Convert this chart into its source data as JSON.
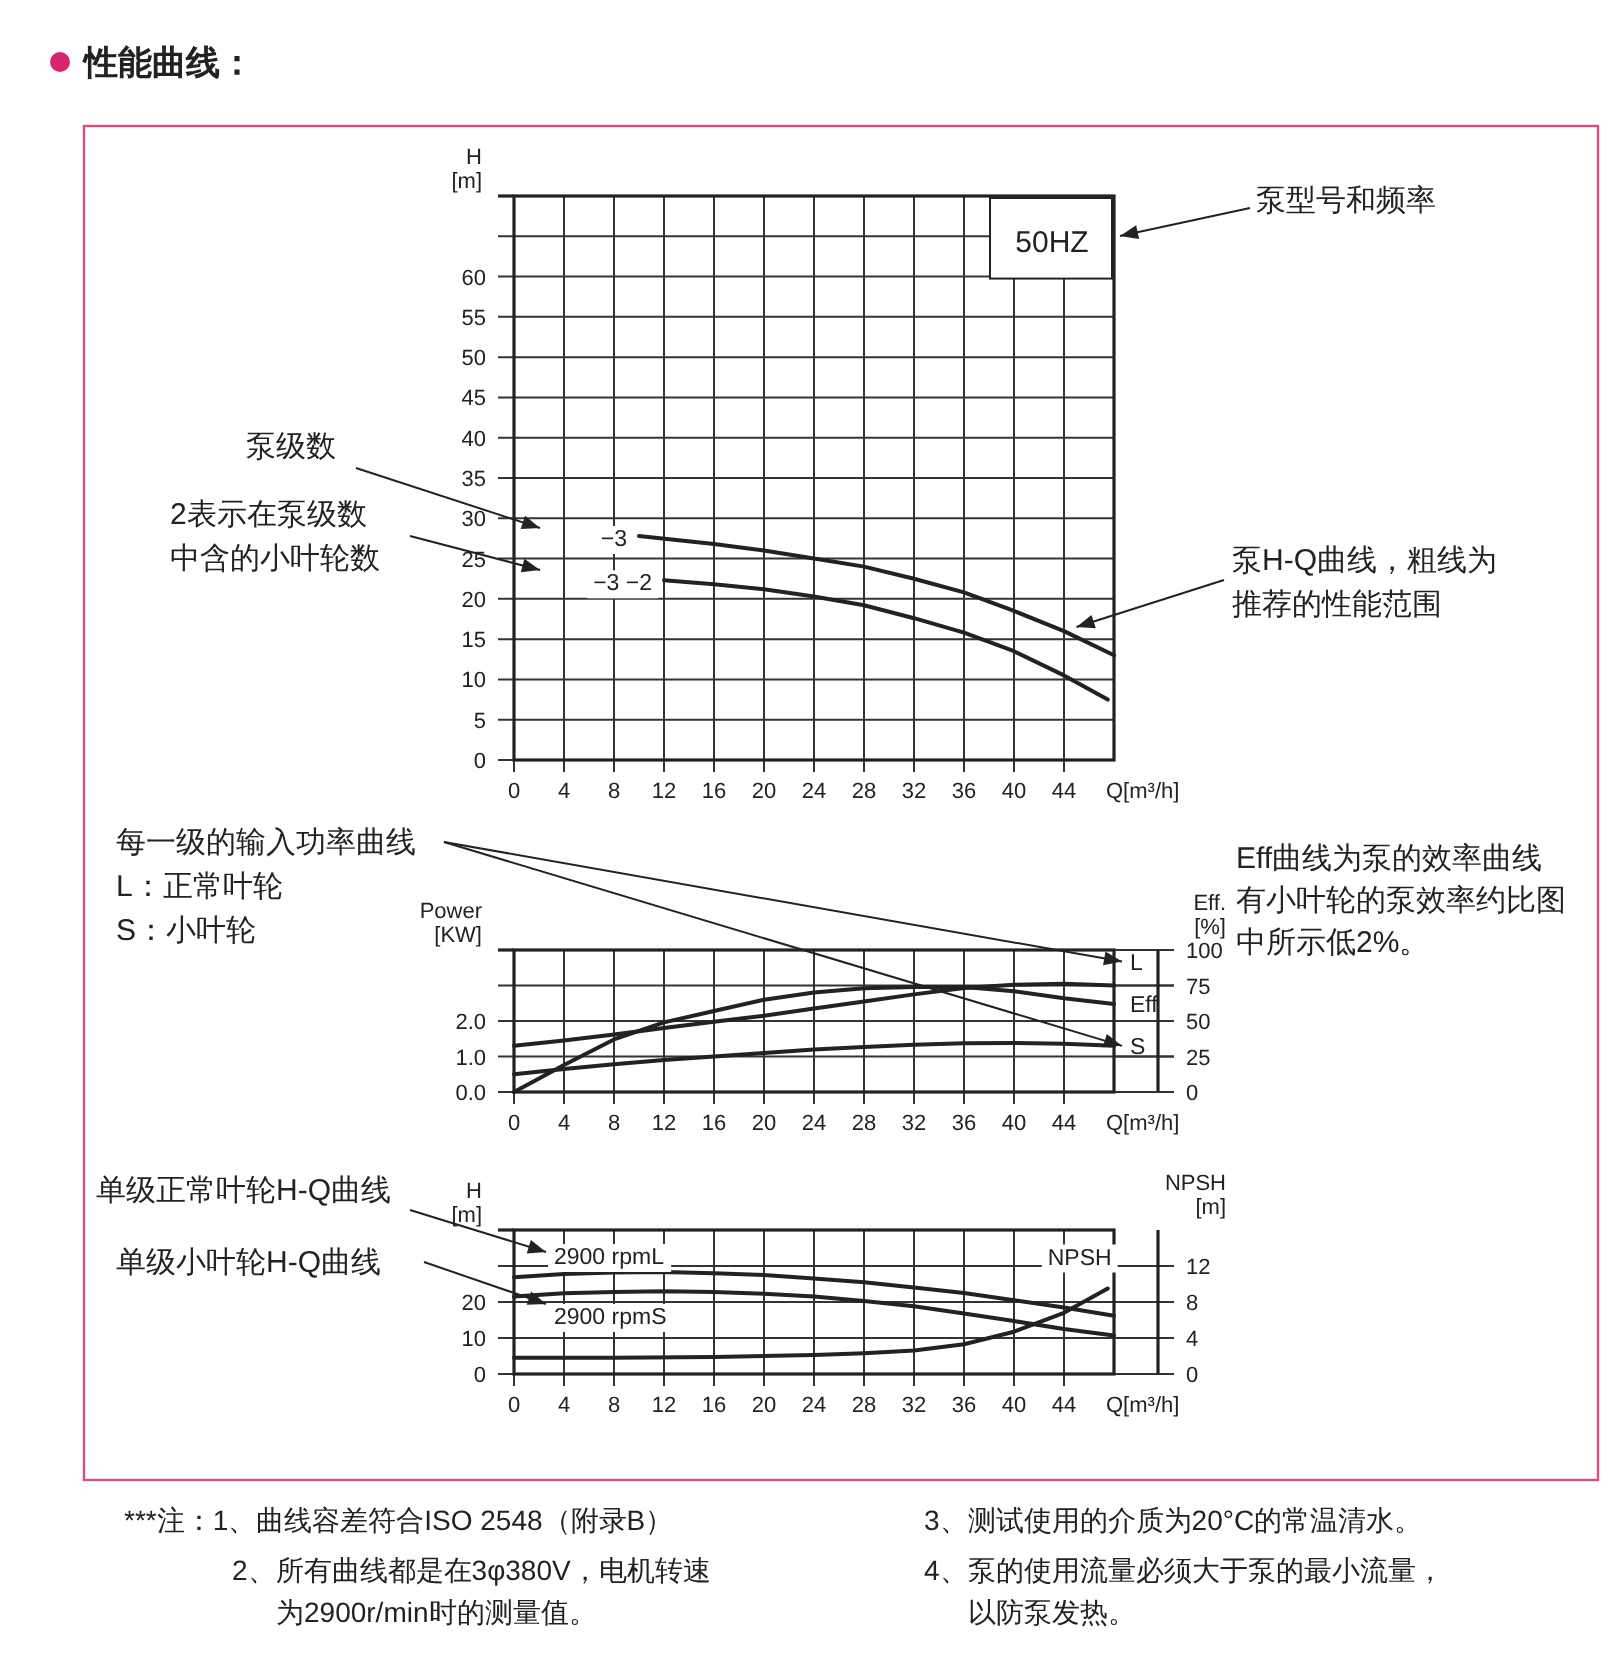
{
  "chart_data": [
    {
      "type": "line",
      "xlabel": "Q[m³/h]",
      "ylabel": "H [m]",
      "xlim": [
        0,
        48
      ],
      "xticks": [
        0,
        4,
        8,
        12,
        16,
        20,
        24,
        28,
        32,
        36,
        40,
        44
      ],
      "ylim": [
        0,
        70
      ],
      "yticks": [
        0,
        5,
        10,
        15,
        20,
        25,
        30,
        35,
        40,
        45,
        50,
        55,
        60,
        {
          "value": 65,
          "label": null
        }
      ],
      "grid": true,
      "series": [
        {
          "name": "−3",
          "color": "#222222",
          "x": [
            10,
            16,
            20,
            24,
            28,
            32,
            36,
            40,
            44,
            48
          ],
          "values": [
            27.8,
            26.8,
            26,
            25,
            24,
            22.5,
            20.8,
            18.5,
            16,
            13
          ]
        },
        {
          "name": "−3 −2",
          "color": "#222222",
          "x": [
            12,
            16,
            20,
            24,
            28,
            32,
            36,
            40,
            44,
            47.5
          ],
          "values": [
            22.3,
            21.8,
            21.2,
            20.3,
            19.2,
            17.6,
            15.8,
            13.5,
            10.5,
            7.5
          ]
        }
      ],
      "annotations": [
        "50HZ",
        "泵型号和频率",
        "泵级数",
        "2表示在泵级数中含的小叶轮数",
        {
          "text": "泵H-Q曲线，粗线为推荐的性能范围",
          "x": 45,
          "y": 16.5
        },
        "性能曲线："
      ]
    },
    {
      "type": "line",
      "xlabel": "Q[m³/h]",
      "ylabel": "Power [KW]",
      "y2label": "Eff. [%]",
      "xlim": [
        0,
        48
      ],
      "xticks": [
        0,
        4,
        8,
        12,
        16,
        20,
        24,
        28,
        32,
        36,
        40,
        44
      ],
      "ylim": [
        0,
        4
      ],
      "yticks": [
        {
          "value": 0,
          "label": "0.0"
        },
        {
          "value": 1,
          "label": "1.0"
        },
        {
          "value": 2,
          "label": "2.0"
        },
        {
          "value": 3,
          "label": null
        }
      ],
      "y2lim": [
        0,
        100
      ],
      "y2ticks": [
        0,
        25,
        50,
        75,
        100
      ],
      "grid": true,
      "legend": "right",
      "series": [
        {
          "name": "L",
          "color": "#222222",
          "x": [
            0,
            4,
            8,
            12,
            16,
            20,
            24,
            28,
            32,
            36,
            40,
            44,
            48
          ],
          "values": [
            1.3,
            1.45,
            1.62,
            1.8,
            1.98,
            2.15,
            2.35,
            2.55,
            2.75,
            2.93,
            3.02,
            3.05,
            3.0
          ]
        },
        {
          "name": "Eff",
          "color": "#222222",
          "axis": "y2",
          "x": [
            0,
            4,
            8,
            12,
            16,
            20,
            24,
            28,
            32,
            36,
            40,
            44,
            48
          ],
          "values": [
            0,
            19,
            37,
            49,
            57,
            65,
            70,
            73,
            74,
            74,
            71,
            66,
            62
          ]
        },
        {
          "name": "S",
          "color": "#222222",
          "x": [
            0,
            4,
            8,
            12,
            16,
            20,
            24,
            28,
            32,
            36,
            40,
            44,
            48
          ],
          "values": [
            0.5,
            0.65,
            0.78,
            0.9,
            1.0,
            1.1,
            1.2,
            1.27,
            1.33,
            1.37,
            1.38,
            1.36,
            1.3
          ]
        }
      ],
      "annotations": [
        "每一级的输入功率曲线",
        "L：正常叶轮",
        "S：小叶轮",
        "Eff曲线为泵的效率曲线有小叶轮的泵效率约比图中所示低2%。"
      ]
    },
    {
      "type": "line",
      "xlabel": "Q[m³/h]",
      "ylabel": "H [m]",
      "y2label": "NPSH [m]",
      "xlim": [
        0,
        48
      ],
      "xticks": [
        0,
        4,
        8,
        12,
        16,
        20,
        24,
        28,
        32,
        36,
        40,
        44
      ],
      "ylim": [
        0,
        40
      ],
      "yticks": [
        0,
        10,
        20,
        {
          "value": 30,
          "label": null
        }
      ],
      "y2lim": [
        0,
        16
      ],
      "y2ticks": [
        0,
        4,
        8,
        12
      ],
      "grid": true,
      "legend": "top left",
      "series": [
        {
          "name": "2900 rpmL",
          "color": "#222222",
          "x": [
            0,
            4,
            8,
            12,
            16,
            20,
            24,
            28,
            32,
            36,
            40,
            44,
            48
          ],
          "values": [
            26.9,
            27.8,
            28.2,
            28.3,
            28,
            27.5,
            26.5,
            25.5,
            24,
            22.5,
            20.5,
            18.5,
            16.2
          ]
        },
        {
          "name": "2900 rpmS",
          "color": "#222222",
          "x": [
            0,
            4,
            8,
            12,
            16,
            20,
            24,
            28,
            32,
            36,
            40,
            44,
            48
          ],
          "values": [
            21.5,
            22.4,
            22.8,
            23,
            22.8,
            22.3,
            21.5,
            20.3,
            18.8,
            16.8,
            14.7,
            12.5,
            10.7
          ]
        },
        {
          "name": "NPSH",
          "color": "#222222",
          "axis": "y2",
          "x": [
            0,
            8,
            16,
            24,
            28,
            32,
            36,
            40,
            44,
            47.5
          ],
          "values": [
            1.8,
            1.8,
            1.9,
            2.1,
            2.3,
            2.6,
            3.3,
            4.7,
            6.8,
            9.5
          ]
        }
      ],
      "annotations": [
        "单级正常叶轮H-Q曲线",
        "单级小叶轮H-Q曲线",
        "***注：1、曲线容差符合ISO 2548（附录B）",
        "2、所有曲线都是在3φ380V，电机转速为2900r/min时的测量值。",
        "3、测试使用的介质为20°C的常温清水。",
        "4、泵的使用流量必须大于泵的最小流量，以防泵发热。"
      ]
    }
  ]
}
